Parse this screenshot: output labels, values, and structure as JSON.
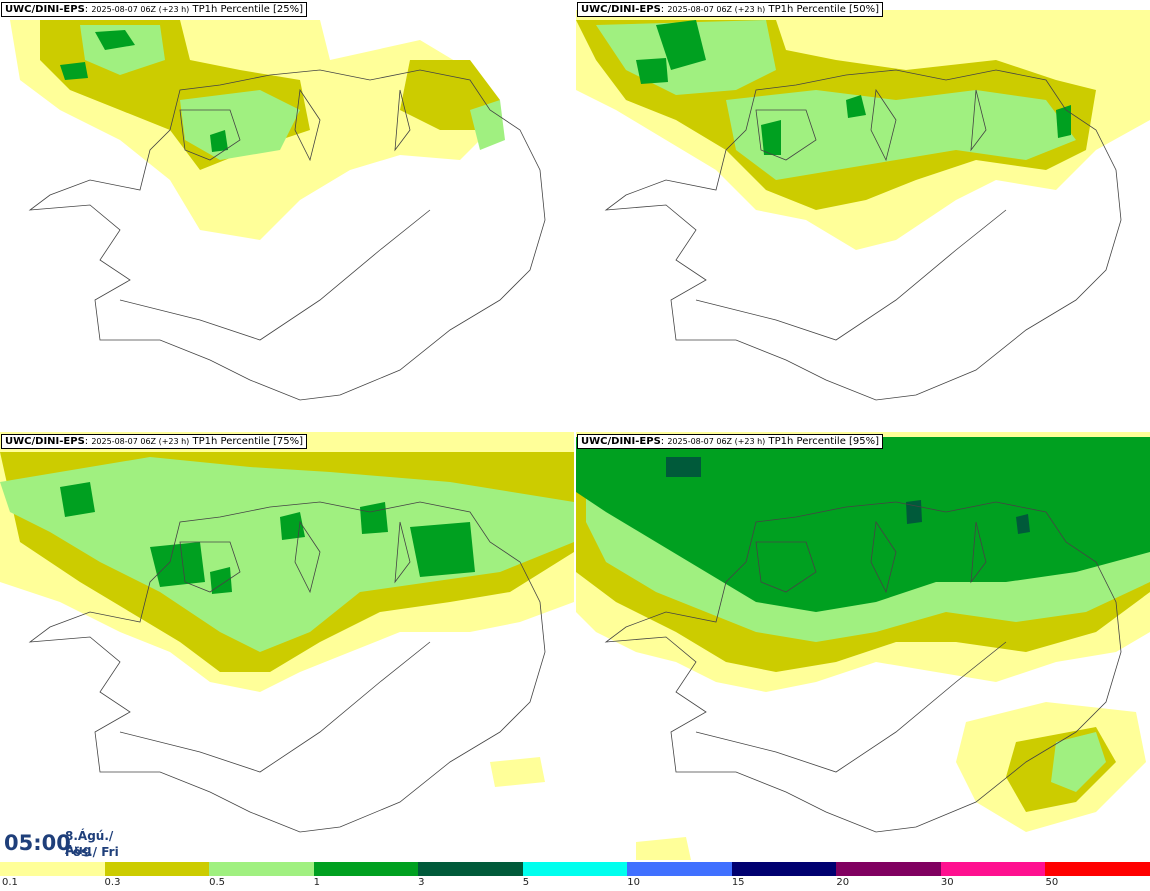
{
  "panels": [
    {
      "model": "UWC/DINI-EPS",
      "run": "2025-08-07 06Z (+23 h)",
      "label": "TP1h Percentile [25%]"
    },
    {
      "model": "UWC/DINI-EPS",
      "run": "2025-08-07 06Z (+23 h)",
      "label": "TP1h Percentile [50%]"
    },
    {
      "model": "UWC/DINI-EPS",
      "run": "2025-08-07 06Z (+23 h)",
      "label": "TP1h Percentile [75%]"
    },
    {
      "model": "UWC/DINI-EPS",
      "run": "2025-08-07 06Z (+23 h)",
      "label": "TP1h Percentile [95%]"
    }
  ],
  "valid_time": {
    "time": "05:00",
    "date": "8.Ágú./ Aug",
    "day": "Fös./ Fri"
  },
  "legend": {
    "ticks": [
      "0.1",
      "0.3",
      "0.5",
      "1",
      "3",
      "5",
      "10",
      "15",
      "20",
      "30",
      "50"
    ],
    "colors": [
      "#ffff99",
      "#cccc00",
      "#a0f080",
      "#00a020",
      "#005a3a",
      "#00ffee",
      "#4070ff",
      "#000070",
      "#800060",
      "#ff1090",
      "#ff0000"
    ]
  },
  "palette": {
    "c01": "#ffff99",
    "c03": "#cccc00",
    "c05": "#a0f080",
    "c1": "#00a020",
    "c3": "#005a3a"
  }
}
